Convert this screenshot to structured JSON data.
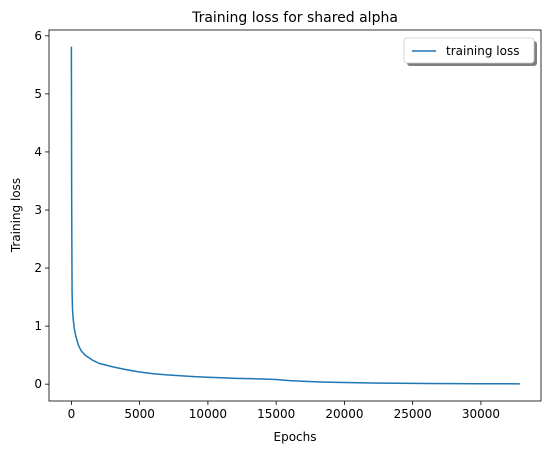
{
  "chart_data": {
    "type": "line",
    "title": "Training loss for shared alpha",
    "xlabel": "Epochs",
    "ylabel": "Training loss",
    "xlim": [
      -1640,
      34400
    ],
    "ylim": [
      -0.29,
      6.1
    ],
    "xticks": [
      0,
      5000,
      10000,
      15000,
      20000,
      25000,
      30000
    ],
    "yticks": [
      0,
      1,
      2,
      3,
      4,
      5,
      6
    ],
    "grid": false,
    "legend_placement": "top-right",
    "series": [
      {
        "name": "training loss",
        "color": "#1f77b4",
        "x": [
          0,
          20,
          50,
          80,
          120,
          200,
          300,
          500,
          700,
          1000,
          1500,
          2000,
          3000,
          4000,
          5000,
          6000,
          7000,
          8000,
          9000,
          10000,
          11000,
          12000,
          13000,
          14000,
          15000,
          15500,
          16000,
          17000,
          18000,
          19000,
          20000,
          22000,
          24000,
          26000,
          28000,
          30000,
          32000,
          32800
        ],
        "y": [
          5.8,
          3.2,
          1.6,
          1.3,
          1.15,
          0.98,
          0.85,
          0.68,
          0.58,
          0.5,
          0.42,
          0.36,
          0.3,
          0.25,
          0.21,
          0.18,
          0.16,
          0.145,
          0.13,
          0.12,
          0.11,
          0.1,
          0.095,
          0.09,
          0.08,
          0.07,
          0.06,
          0.05,
          0.04,
          0.033,
          0.028,
          0.02,
          0.015,
          0.012,
          0.01,
          0.008,
          0.006,
          0.005
        ]
      }
    ]
  }
}
